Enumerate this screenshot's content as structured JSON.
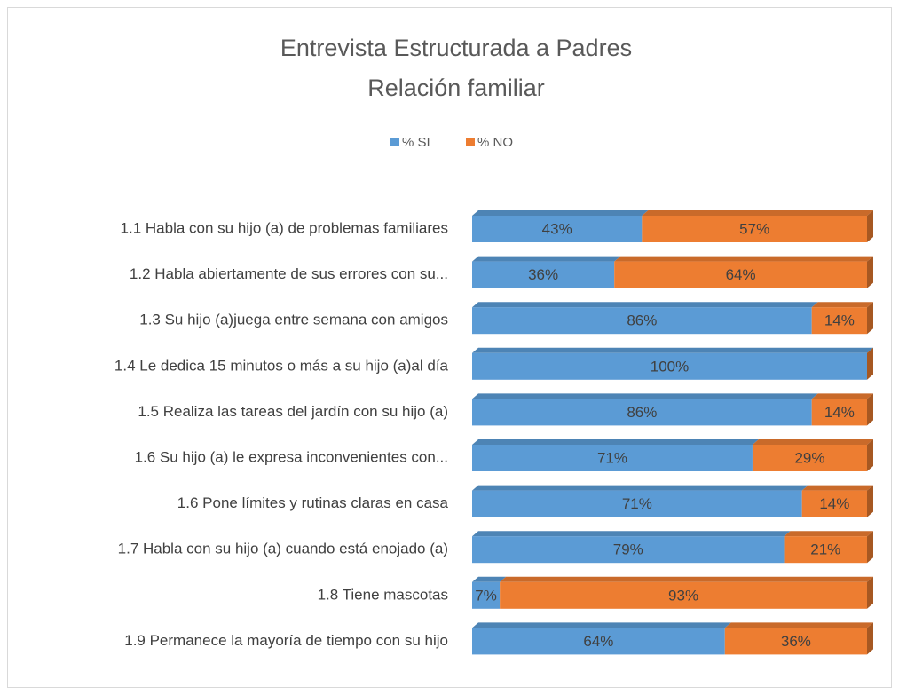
{
  "chart_data": {
    "type": "bar",
    "orientation": "horizontal",
    "stack": "percent",
    "title": [
      "Entrevista Estructurada a Padres",
      "Relación familiar"
    ],
    "categories": [
      "1.1 Habla con su hijo (a) de problemas familiares",
      "1.2 Habla abiertamente de sus errores con su...",
      "1.3 Su hijo (a)juega entre semana con amigos",
      "1.4 Le dedica 15 minutos o más a su hijo (a)al día",
      "1.5 Realiza las tareas del jardín con su hijo (a)",
      "1.6 Su hijo (a)   le expresa    inconvenientes con...",
      "1.6 Pone límites y rutinas claras en casa",
      "1.7 Habla con su hijo (a) cuando está enojado (a)",
      "1.8 Tiene mascotas",
      "1.9 Permanece la mayoría de tiempo con su hijo"
    ],
    "series": [
      {
        "name": "% SI",
        "color": "#5b9bd5",
        "values": [
          43,
          36,
          86,
          100,
          86,
          71,
          71,
          79,
          7,
          64
        ],
        "value_labels": [
          "43%",
          "36%",
          "86%",
          "100%",
          "86%",
          "71%",
          "71%",
          "79%",
          "7%",
          "64%"
        ]
      },
      {
        "name": "% NO",
        "color": "#ed7d31",
        "values": [
          57,
          64,
          14,
          0,
          14,
          29,
          14,
          21,
          93,
          36
        ],
        "value_labels": [
          "57%",
          "64%",
          "14%",
          null,
          "14%",
          "29%",
          "14%",
          "21%",
          "93%",
          "36%"
        ]
      }
    ],
    "legend": "top"
  }
}
